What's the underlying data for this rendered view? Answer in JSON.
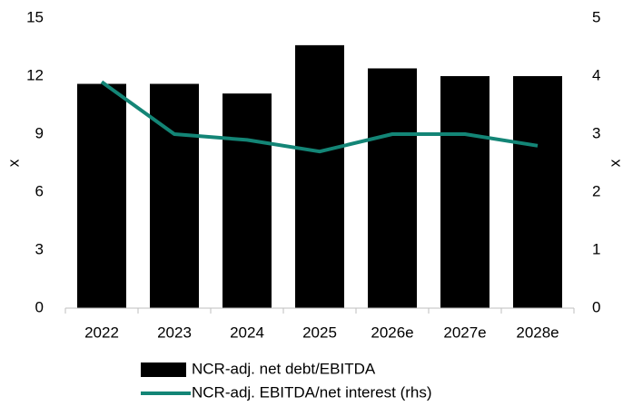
{
  "chart_data": {
    "type": "bar",
    "categories": [
      "2022",
      "2023",
      "2024",
      "2025",
      "2026e",
      "2027e",
      "2028e"
    ],
    "series": [
      {
        "name": "NCR-adj. net debt/EBITDA",
        "type": "bar",
        "color": "#000000",
        "values": [
          11.6,
          11.6,
          11.1,
          13.6,
          12.4,
          12.0,
          12.0
        ]
      },
      {
        "name": "NCR-adj. EBITDA/net interest (rhs)",
        "type": "line",
        "axis": "y2",
        "color": "#138576",
        "values": [
          3.9,
          3.0,
          2.9,
          2.7,
          3.0,
          3.0,
          2.8
        ]
      }
    ],
    "ylabel": "x",
    "y2label": "x",
    "ylim": [
      0,
      15
    ],
    "yticks": [
      0,
      3,
      6,
      9,
      12,
      15
    ],
    "y2lim": [
      0,
      5
    ],
    "y2ticks": [
      0,
      1,
      2,
      3,
      4,
      5
    ],
    "grid": false,
    "legend": "bottom"
  }
}
